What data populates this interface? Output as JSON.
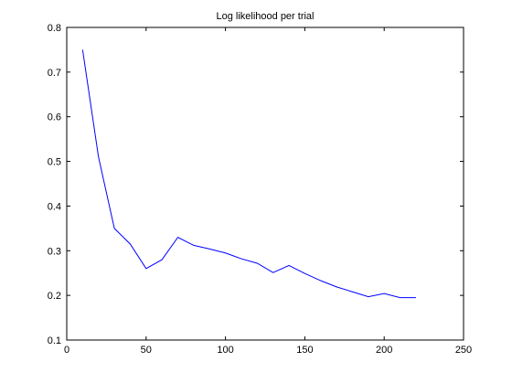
{
  "chart_data": {
    "type": "line",
    "title": "Log likelihood per trial",
    "xlabel": "",
    "ylabel": "",
    "xlim": [
      0,
      250
    ],
    "ylim": [
      0.1,
      0.8
    ],
    "xticks": [
      0,
      50,
      100,
      150,
      200,
      250
    ],
    "yticks": [
      0.1,
      0.2,
      0.3,
      0.4,
      0.5,
      0.6,
      0.7,
      0.8
    ],
    "grid": false,
    "legend": "none",
    "series": [
      {
        "color": "#0000ff",
        "x": [
          10,
          20,
          30,
          40,
          50,
          60,
          70,
          80,
          90,
          100,
          110,
          120,
          130,
          140,
          150,
          160,
          170,
          180,
          190,
          200,
          210,
          220
        ],
        "y": [
          0.75,
          0.51,
          0.35,
          0.315,
          0.26,
          0.28,
          0.33,
          0.312,
          0.304,
          0.295,
          0.282,
          0.272,
          0.251,
          0.267,
          0.249,
          0.233,
          0.219,
          0.208,
          0.197,
          0.204,
          0.195,
          0.195
        ]
      }
    ]
  }
}
